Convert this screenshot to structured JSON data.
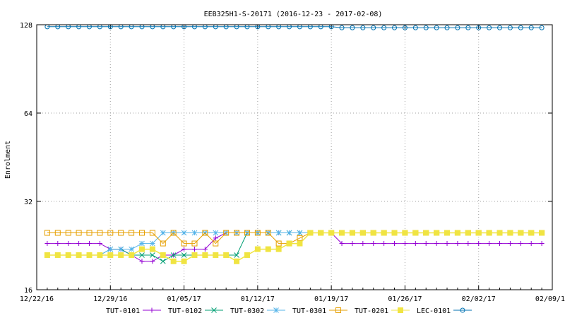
{
  "chart_data": {
    "type": "line",
    "title": "EEB325H1-S-20171 (2016-12-23 - 2017-02-08)",
    "xlabel": "",
    "ylabel": "Enrolment",
    "y_scale": "log2",
    "ylim": [
      16,
      128
    ],
    "yticks": [
      16,
      32,
      64,
      128
    ],
    "xlim": [
      "2016-12-22",
      "2017-02-09"
    ],
    "xtick_labels": [
      "12/22/16",
      "12/29/16",
      "01/05/17",
      "01/12/17",
      "01/19/17",
      "01/26/17",
      "02/02/17",
      "02/09/17"
    ],
    "grid": true,
    "legend_position": "bottom",
    "x": [
      "2016-12-23",
      "2016-12-24",
      "2016-12-25",
      "2016-12-26",
      "2016-12-27",
      "2016-12-28",
      "2016-12-29",
      "2016-12-30",
      "2016-12-31",
      "2017-01-01",
      "2017-01-02",
      "2017-01-03",
      "2017-01-04",
      "2017-01-05",
      "2017-01-06",
      "2017-01-07",
      "2017-01-08",
      "2017-01-09",
      "2017-01-10",
      "2017-01-11",
      "2017-01-12",
      "2017-01-13",
      "2017-01-14",
      "2017-01-15",
      "2017-01-16",
      "2017-01-17",
      "2017-01-18",
      "2017-01-19",
      "2017-01-20",
      "2017-01-21",
      "2017-01-22",
      "2017-01-23",
      "2017-01-24",
      "2017-01-25",
      "2017-01-26",
      "2017-01-27",
      "2017-01-28",
      "2017-01-29",
      "2017-01-30",
      "2017-01-31",
      "2017-02-01",
      "2017-02-02",
      "2017-02-03",
      "2017-02-04",
      "2017-02-05",
      "2017-02-06",
      "2017-02-07",
      "2017-02-08"
    ],
    "series": [
      {
        "name": "TUT-0101",
        "color": "#9400d3",
        "marker": "plus",
        "values": [
          23,
          23,
          23,
          23,
          23,
          23,
          22,
          22,
          21,
          20,
          20,
          21,
          21,
          22,
          22,
          22,
          24,
          25,
          25,
          25,
          25,
          25,
          25,
          25,
          25,
          25,
          25,
          25,
          23,
          23,
          23,
          23,
          23,
          23,
          23,
          23,
          23,
          23,
          23,
          23,
          23,
          23,
          23,
          23,
          23,
          23,
          23,
          23
        ]
      },
      {
        "name": "TUT-0102",
        "color": "#009e73",
        "marker": "x",
        "values": [
          21,
          21,
          21,
          21,
          21,
          21,
          22,
          22,
          21,
          21,
          21,
          20,
          21,
          21,
          21,
          21,
          21,
          21,
          21,
          25,
          25,
          25,
          25,
          25,
          25,
          25,
          25,
          25,
          25,
          25,
          25,
          25,
          25,
          25,
          25,
          25,
          25,
          25,
          25,
          25,
          25,
          25,
          25,
          25,
          25,
          25,
          25,
          25
        ]
      },
      {
        "name": "TUT-0302",
        "color": "#56b4e9",
        "marker": "star",
        "values": [
          21,
          21,
          21,
          21,
          21,
          21,
          22,
          22,
          22,
          23,
          23,
          25,
          25,
          25,
          25,
          25,
          25,
          25,
          25,
          25,
          25,
          25,
          25,
          25,
          25,
          25,
          25,
          25,
          25,
          25,
          25,
          25,
          25,
          25,
          25,
          25,
          25,
          25,
          25,
          25,
          25,
          25,
          25,
          25,
          25,
          25,
          25,
          25
        ]
      },
      {
        "name": "TUT-0301",
        "color": "#e69f00",
        "marker": "square-open",
        "values": [
          25,
          25,
          25,
          25,
          25,
          25,
          25,
          25,
          25,
          25,
          25,
          23,
          25,
          23,
          23,
          25,
          23,
          25,
          25,
          25,
          25,
          25,
          23,
          23,
          24,
          25,
          25,
          25,
          25,
          25,
          25,
          25,
          25,
          25,
          25,
          25,
          25,
          25,
          25,
          25,
          25,
          25,
          25,
          25,
          25,
          25,
          25,
          25
        ]
      },
      {
        "name": "TUT-0201",
        "color": "#f0e442",
        "marker": "square-filled",
        "values": [
          21,
          21,
          21,
          21,
          21,
          21,
          21,
          21,
          21,
          22,
          22,
          21,
          20,
          20,
          21,
          21,
          21,
          21,
          20,
          21,
          22,
          22,
          22,
          23,
          23,
          25,
          25,
          25,
          25,
          25,
          25,
          25,
          25,
          25,
          25,
          25,
          25,
          25,
          25,
          25,
          25,
          25,
          25,
          25,
          25,
          25,
          25,
          25
        ]
      },
      {
        "name": "LEC-0101",
        "color": "#0072b2",
        "marker": "circle-open",
        "values": [
          126,
          126,
          126,
          126,
          126,
          126,
          126,
          126,
          126,
          126,
          126,
          126,
          126,
          126,
          126,
          126,
          126,
          126,
          126,
          126,
          126,
          126,
          126,
          126,
          126,
          126,
          126,
          126,
          125,
          125,
          125,
          125,
          125,
          125,
          125,
          125,
          125,
          125,
          125,
          125,
          125,
          125,
          125,
          125,
          125,
          125,
          125,
          125
        ]
      }
    ]
  }
}
